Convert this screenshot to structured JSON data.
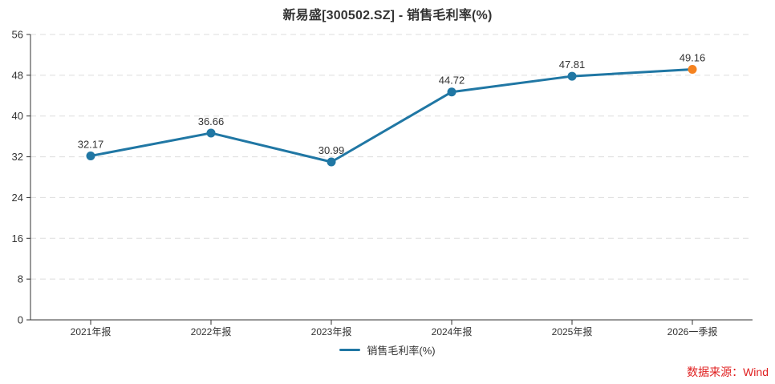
{
  "title": "新易盛[300502.SZ] - 销售毛利率(%)",
  "chart_data": {
    "type": "line",
    "title": "新易盛[300502.SZ] - 销售毛利率(%)",
    "categories": [
      "2021年报",
      "2022年报",
      "2023年报",
      "2024年报",
      "2025年报",
      "2026一季报"
    ],
    "series": [
      {
        "name": "销售毛利率(%)",
        "values": [
          32.17,
          36.66,
          30.99,
          44.72,
          47.81,
          49.16
        ]
      }
    ],
    "point_labels": [
      "32.17",
      "36.66",
      "30.99",
      "44.72",
      "47.81",
      "49.16"
    ],
    "ylim": [
      0,
      56
    ],
    "ytick_step": 8,
    "ytick_labels": [
      "0",
      "8",
      "16",
      "24",
      "32",
      "40",
      "48",
      "56"
    ],
    "grid": "horizontal-dashed",
    "legend_position": "bottom-center",
    "colors": {
      "line": "#2077A4",
      "marker": "#2077A4",
      "last_marker": "#F5821F",
      "axis": "#333333",
      "grid": "#DDDDDD",
      "text": "#333333"
    }
  },
  "legend": {
    "label": "销售毛利率(%)"
  },
  "footer": {
    "source_label": "数据来源：Wind",
    "color": "#E02020"
  }
}
